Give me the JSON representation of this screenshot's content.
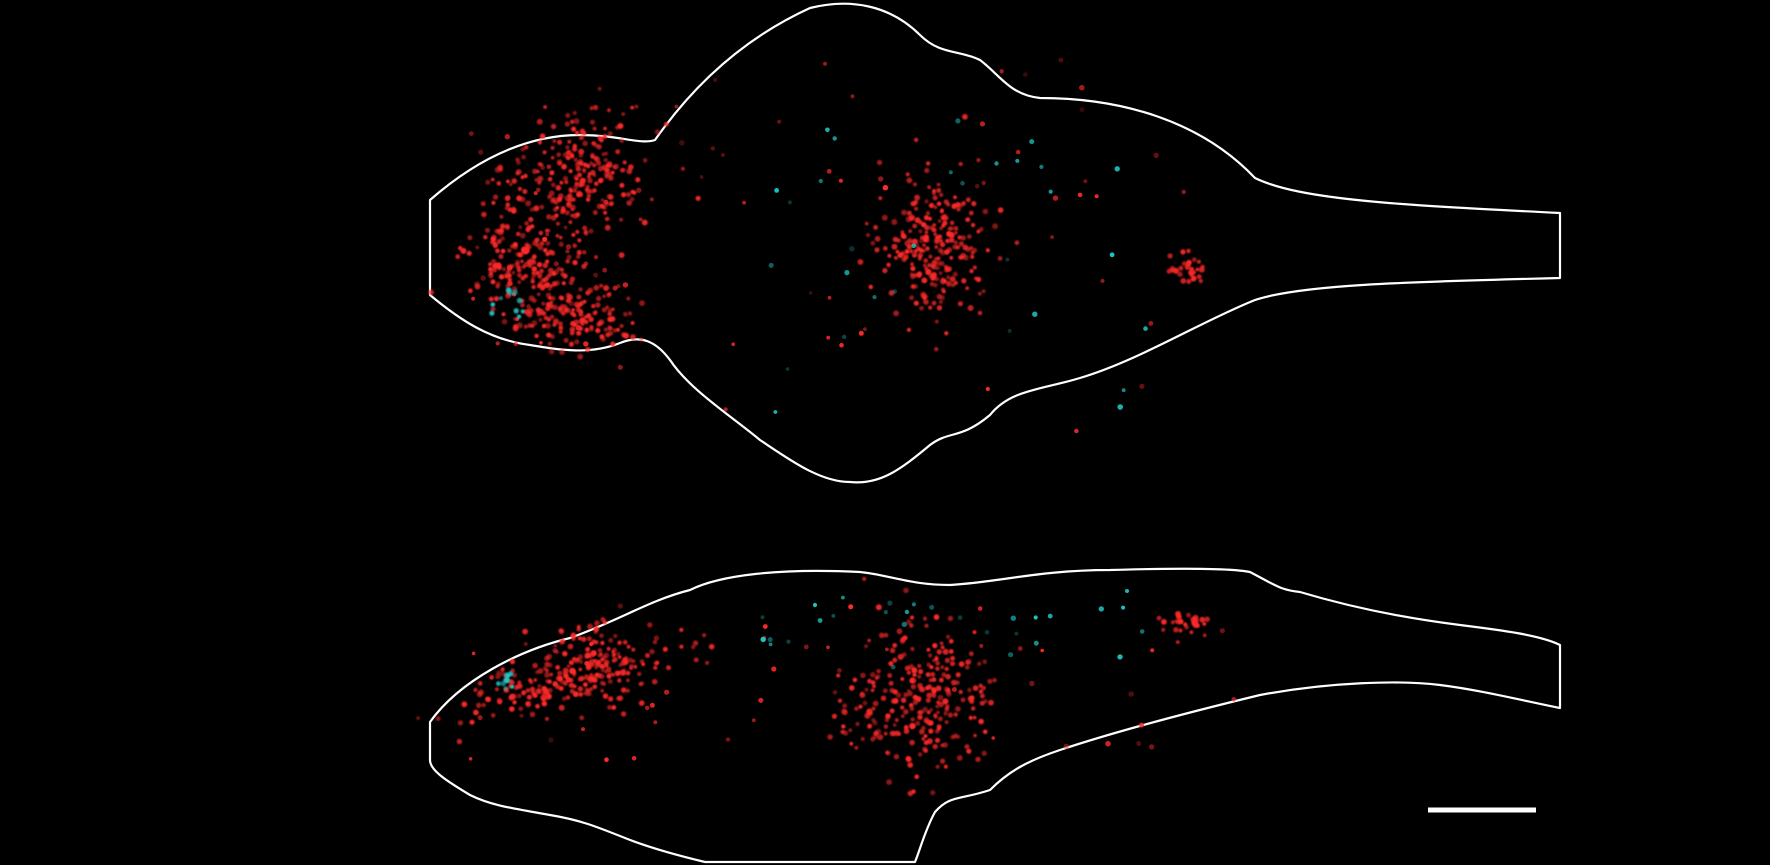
{
  "figure": {
    "background": "#000000",
    "outline_color": "#ffffff",
    "colors": {
      "red_cells": "#ff2a2a",
      "cyan_cells": "#22c8c8"
    },
    "panels": [
      {
        "view": "dorsal"
      },
      {
        "view": "lateral"
      }
    ],
    "scale_bar": {
      "label": ""
    }
  }
}
